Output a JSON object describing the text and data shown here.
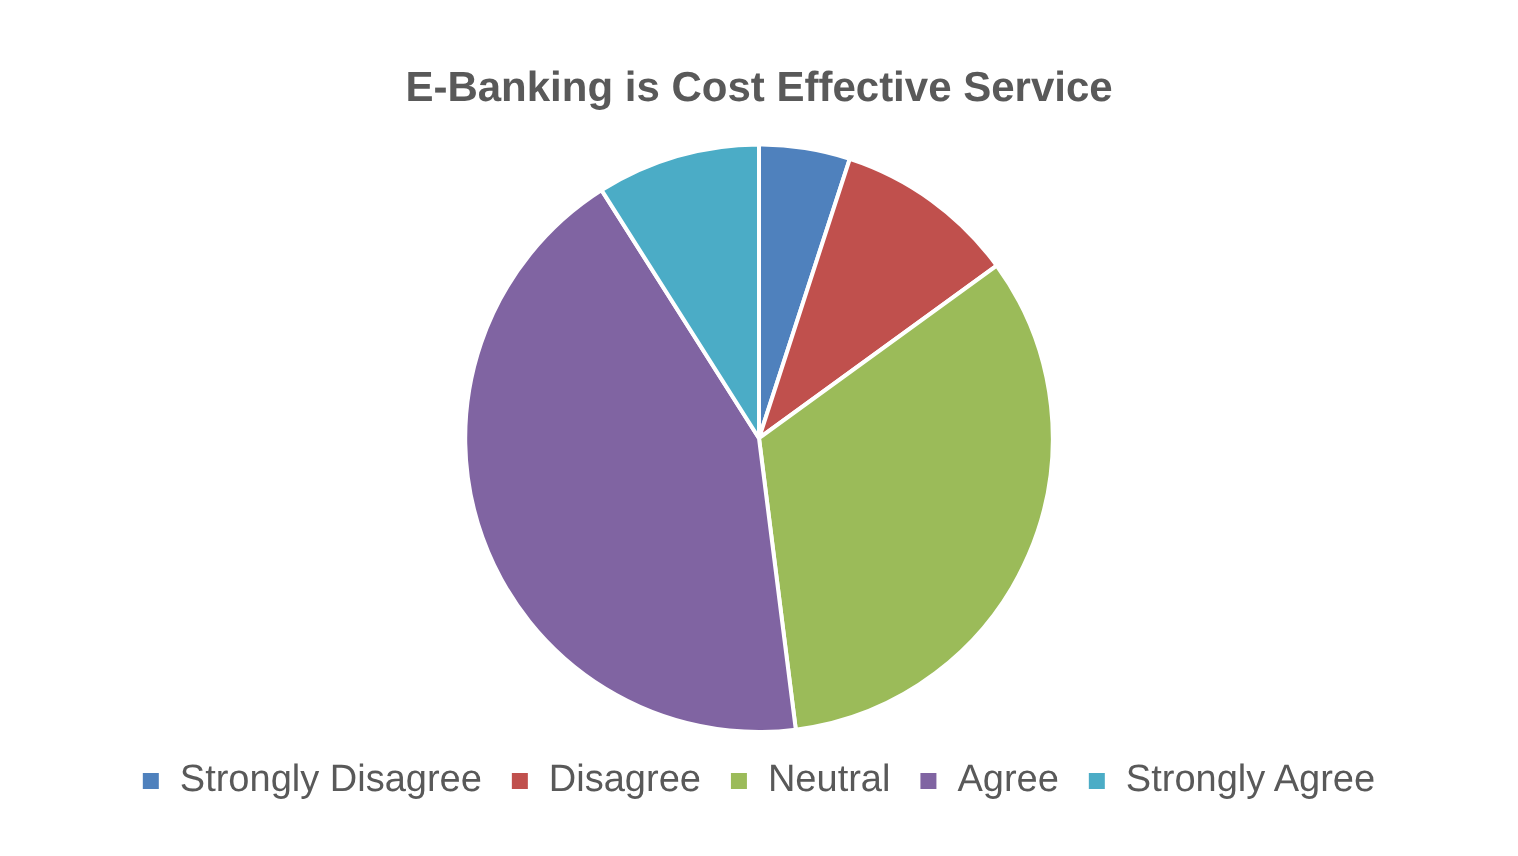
{
  "chart_data": {
    "type": "pie",
    "title": "E-Banking is Cost Effective Service",
    "categories": [
      "Strongly Disagree",
      "Disagree",
      "Neutral",
      "Agree",
      "Strongly Agree"
    ],
    "values": [
      5,
      10,
      33,
      43,
      9
    ],
    "colors": [
      "#4f81bd",
      "#c0504d",
      "#9bbb59",
      "#8064a2",
      "#4bacc6"
    ],
    "legend": "bottom"
  }
}
